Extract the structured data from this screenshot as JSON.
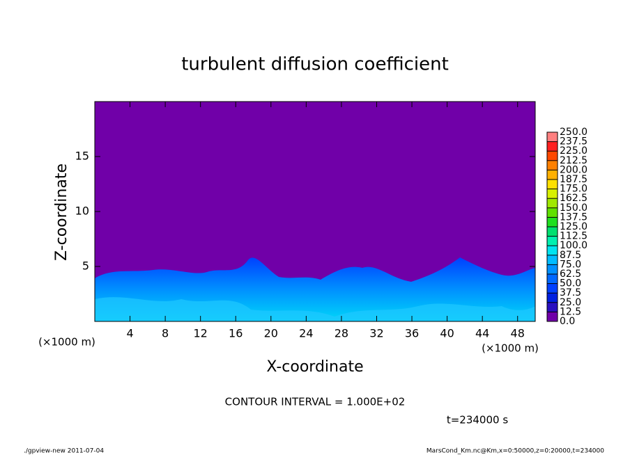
{
  "chart_data": {
    "type": "heatmap",
    "title": "turbulent diffusion coefficient",
    "xlabel": "X-coordinate",
    "ylabel": "Z-coordinate",
    "x_unit": "(×1000 m)",
    "y_unit": "(×1000 m)",
    "xlim": [
      0,
      50
    ],
    "xticks": [
      4,
      8,
      12,
      16,
      20,
      24,
      28,
      32,
      36,
      40,
      44,
      48
    ],
    "ylim": [
      0,
      20
    ],
    "yticks": [
      5,
      10,
      15
    ],
    "colorbar": {
      "levels": [
        {
          "value": 0,
          "label": "0.0"
        },
        {
          "value": 12.5,
          "label": "12.5"
        },
        {
          "value": 25,
          "label": "25.0"
        },
        {
          "value": 37.5,
          "label": "37.5"
        },
        {
          "value": 50,
          "label": "50.0"
        },
        {
          "value": 62.5,
          "label": "62.5"
        },
        {
          "value": 75,
          "label": "75.0"
        },
        {
          "value": 87.5,
          "label": "87.5"
        },
        {
          "value": 100,
          "label": "100.0"
        },
        {
          "value": 112.5,
          "label": "112.5"
        },
        {
          "value": 125,
          "label": "125.0"
        },
        {
          "value": 137.5,
          "label": "137.5"
        },
        {
          "value": 150,
          "label": "150.0"
        },
        {
          "value": 162.5,
          "label": "162.5"
        },
        {
          "value": 175,
          "label": "175.0"
        },
        {
          "value": 187.5,
          "label": "187.5"
        },
        {
          "value": 200,
          "label": "200.0"
        },
        {
          "value": 212.5,
          "label": "212.5"
        },
        {
          "value": 225,
          "label": "225.0"
        },
        {
          "value": 237.5,
          "label": "237.5"
        },
        {
          "value": 250,
          "label": "250.0"
        }
      ],
      "colors": [
        "#7000a8",
        "#2a10c0",
        "#0020e0",
        "#0040ff",
        "#0068ff",
        "#0090ff",
        "#00bcff",
        "#00e4f0",
        "#00f0b0",
        "#00e070",
        "#20e020",
        "#60e000",
        "#a0e800",
        "#d8f000",
        "#ffe000",
        "#ffb000",
        "#ff8000",
        "#ff4800",
        "#ff2020",
        "#ff8080"
      ]
    },
    "contour_interval": "CONTOUR INTERVAL = 1.000E+02",
    "time_label": "t=234000 s",
    "footer_left": "./gpview-new  2011-07-04",
    "footer_right": "MarsCond_Km.nc@Km,x=0:50000,z=0:20000,t=234000"
  }
}
